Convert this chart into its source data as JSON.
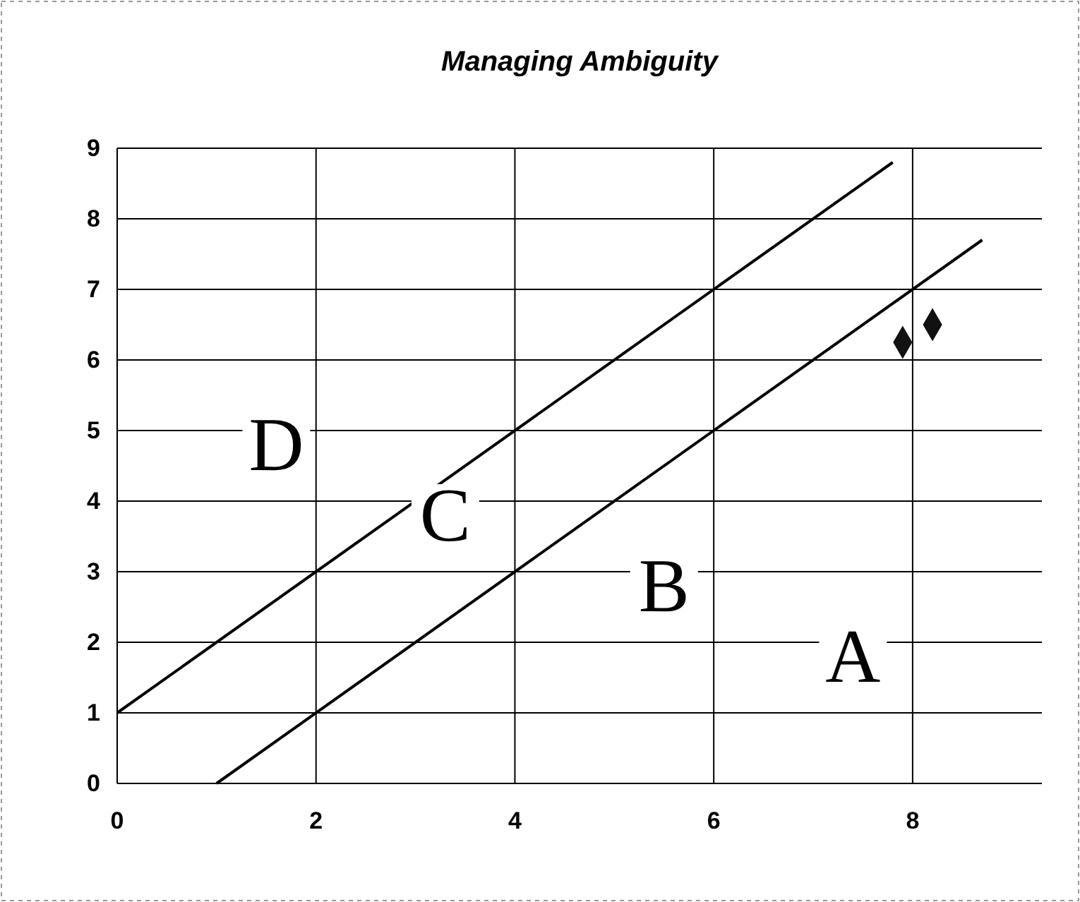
{
  "chart_data": {
    "type": "scatter",
    "title": "Managing Ambiguity",
    "series": [
      {
        "type": "line",
        "x": [
          0,
          7.8
        ],
        "values": [
          1,
          8.8
        ],
        "color": "#000000"
      },
      {
        "type": "line",
        "x": [
          1,
          8.7
        ],
        "values": [
          0,
          7.7
        ],
        "color": "#000000"
      },
      {
        "x": [
          7.9,
          8.2
        ],
        "values": [
          6.25,
          6.5
        ],
        "color": "#111111",
        "marker": "diamond"
      }
    ],
    "xlim": [
      0,
      9.3
    ],
    "xticks": [
      0,
      2,
      4,
      6,
      8
    ],
    "ylim": [
      0,
      9
    ],
    "yticks": [
      0,
      1,
      2,
      3,
      4,
      5,
      6,
      7,
      8,
      9
    ],
    "grid": true,
    "annotations": [
      "D",
      "C",
      "B",
      "A"
    ]
  }
}
